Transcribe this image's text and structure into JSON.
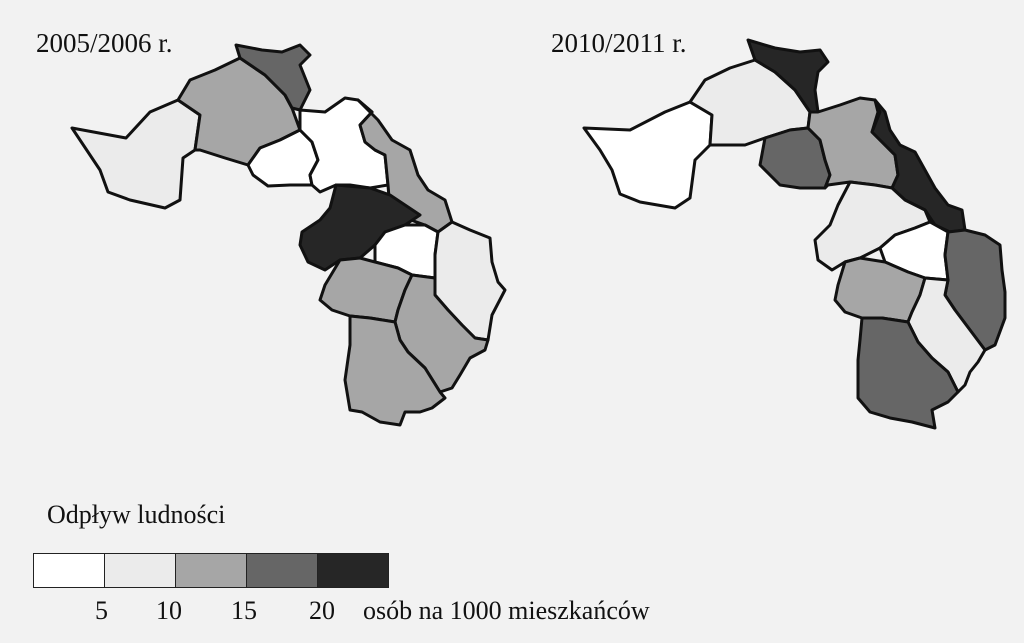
{
  "maps": [
    {
      "title": "2005/2006 r.",
      "regions": [
        {
          "id": "w",
          "level": 1
        },
        {
          "id": "nw",
          "level": 2
        },
        {
          "id": "n",
          "level": 3
        },
        {
          "id": "c1",
          "level": 0
        },
        {
          "id": "c2",
          "level": 0
        },
        {
          "id": "ne",
          "level": 2
        },
        {
          "id": "m",
          "level": 4
        },
        {
          "id": "mid",
          "level": 0
        },
        {
          "id": "e",
          "level": 1
        },
        {
          "id": "sw",
          "level": 2
        },
        {
          "id": "se",
          "level": 2
        },
        {
          "id": "s",
          "level": 2
        }
      ]
    },
    {
      "title": "2010/2011 r.",
      "regions": [
        {
          "id": "w",
          "level": 0
        },
        {
          "id": "nw",
          "level": 1
        },
        {
          "id": "n",
          "level": 4
        },
        {
          "id": "c1",
          "level": 3
        },
        {
          "id": "c2",
          "level": 2
        },
        {
          "id": "ne",
          "level": 4
        },
        {
          "id": "m",
          "level": 1
        },
        {
          "id": "mid",
          "level": 0
        },
        {
          "id": "e",
          "level": 3
        },
        {
          "id": "sw",
          "level": 2
        },
        {
          "id": "se",
          "level": 1
        },
        {
          "id": "s",
          "level": 3
        }
      ]
    }
  ],
  "legend": {
    "title": "Odpływ ludności",
    "colors": [
      "#ffffff",
      "#ebebeb",
      "#a6a6a6",
      "#666666",
      "#262626"
    ],
    "ticks": [
      "5",
      "10",
      "15",
      "20"
    ],
    "unit": "osób na 1000 mieszkańców"
  }
}
